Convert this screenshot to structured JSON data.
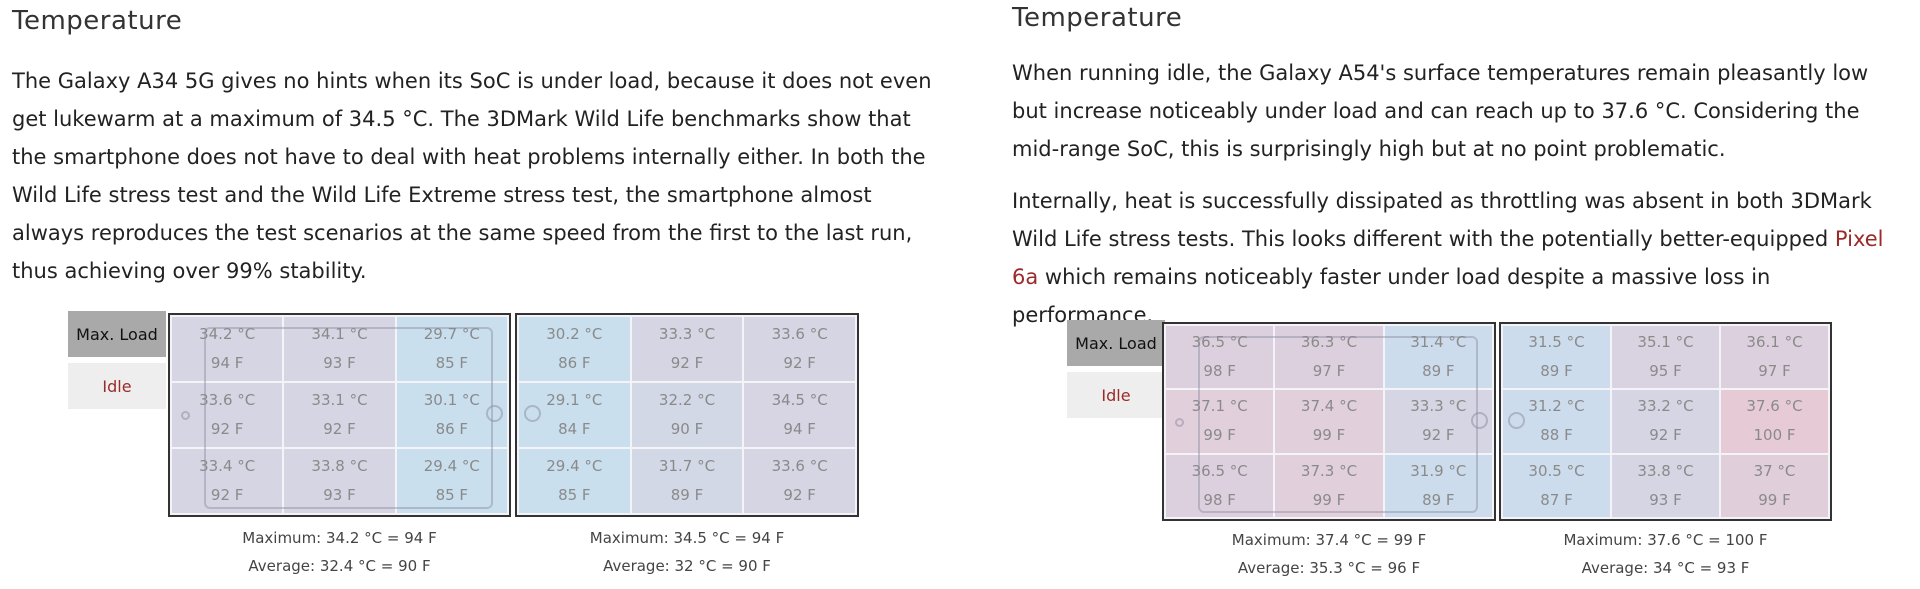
{
  "columns": [
    {
      "title": "Temperature",
      "paragraphs": [
        [
          {
            "text": "The Galaxy A34 5G gives no hints when its SoC is under load, because it does not even get lukewarm at a maximum of 34.5 °C. The 3DMark Wild Life benchmarks show that the smartphone does not have to deal with heat problems internally either. In both the Wild Life stress test and the Wild Life Extreme stress test, the smartphone almost always reproduces the test scenarios at the same speed from the first to the last run, thus achieving over 99% stability."
          }
        ]
      ],
      "tabs": [
        "Max. Load",
        "Idle"
      ],
      "panels": [
        {
          "cells": [
            {
              "c": "34.2 °C",
              "f": "94 F",
              "color": "#d5d5e4"
            },
            {
              "c": "34.1 °C",
              "f": "93 F",
              "color": "#d5d5e4"
            },
            {
              "c": "29.7 °C",
              "f": "85 F",
              "color": "#c9dfee"
            },
            {
              "c": "33.6 °C",
              "f": "92 F",
              "color": "#d5d5e4"
            },
            {
              "c": "33.1 °C",
              "f": "92 F",
              "color": "#d5d5e4"
            },
            {
              "c": "30.1 °C",
              "f": "86 F",
              "color": "#c9dfee"
            },
            {
              "c": "33.4 °C",
              "f": "92 F",
              "color": "#d5d5e4"
            },
            {
              "c": "33.8 °C",
              "f": "93 F",
              "color": "#d5d5e4"
            },
            {
              "c": "29.4 °C",
              "f": "85 F",
              "color": "#c9dfee"
            }
          ],
          "maximum": "Maximum: 34.2 °C = 94 F",
          "average": "Average: 32.4 °C = 90 F"
        },
        {
          "cells": [
            {
              "c": "30.2 °C",
              "f": "86 F",
              "color": "#c9dfee"
            },
            {
              "c": "33.3 °C",
              "f": "92 F",
              "color": "#d5d5e4"
            },
            {
              "c": "33.6 °C",
              "f": "92 F",
              "color": "#d5d5e4"
            },
            {
              "c": "29.1 °C",
              "f": "84 F",
              "color": "#c9dfee"
            },
            {
              "c": "32.2 °C",
              "f": "90 F",
              "color": "#d2d8e6"
            },
            {
              "c": "34.5 °C",
              "f": "94 F",
              "color": "#d7d4e3"
            },
            {
              "c": "29.4 °C",
              "f": "85 F",
              "color": "#c9dfee"
            },
            {
              "c": "31.7 °C",
              "f": "89 F",
              "color": "#d2d8e6"
            },
            {
              "c": "33.6 °C",
              "f": "92 F",
              "color": "#d5d5e4"
            }
          ],
          "maximum": "Maximum: 34.5 °C = 94 F",
          "average": "Average: 32 °C = 90 F"
        }
      ]
    },
    {
      "title": "Temperature",
      "paragraphs": [
        [
          {
            "text": "When running idle, the Galaxy A54's surface temperatures remain pleasantly low but increase noticeably under load and can reach up to 37.6 °C. Considering the mid-range SoC, this is surprisingly high but at no point problematic."
          }
        ],
        [
          {
            "text": "Internally, heat is successfully dissipated as throttling was absent in both 3DMark Wild Life stress tests. This looks different with the potentially better-equipped "
          },
          {
            "link": "Pixel 6a"
          },
          {
            "text": " which remains noticeably faster under load despite a massive loss in performance."
          }
        ]
      ],
      "tabs": [
        "Max. Load",
        "Idle"
      ],
      "panels": [
        {
          "cells": [
            {
              "c": "36.5 °C",
              "f": "98 F",
              "color": "#ddd0de"
            },
            {
              "c": "36.3 °C",
              "f": "97 F",
              "color": "#ddd0de"
            },
            {
              "c": "31.4 °C",
              "f": "89 F",
              "color": "#cddcec"
            },
            {
              "c": "37.1 °C",
              "f": "99 F",
              "color": "#e2cfdc"
            },
            {
              "c": "37.4 °C",
              "f": "99 F",
              "color": "#e2cfdc"
            },
            {
              "c": "33.3 °C",
              "f": "92 F",
              "color": "#d5d5e4"
            },
            {
              "c": "36.5 °C",
              "f": "98 F",
              "color": "#ddd0de"
            },
            {
              "c": "37.3 °C",
              "f": "99 F",
              "color": "#e2cfdc"
            },
            {
              "c": "31.9 °C",
              "f": "89 F",
              "color": "#cddcec"
            }
          ],
          "maximum": "Maximum: 37.4 °C = 99 F",
          "average": "Average: 35.3 °C = 96 F"
        },
        {
          "cells": [
            {
              "c": "31.5 °C",
              "f": "89 F",
              "color": "#cddcec"
            },
            {
              "c": "35.1 °C",
              "f": "95 F",
              "color": "#d9d2e1"
            },
            {
              "c": "36.1 °C",
              "f": "97 F",
              "color": "#ddd0de"
            },
            {
              "c": "31.2 °C",
              "f": "88 F",
              "color": "#cddcec"
            },
            {
              "c": "33.2 °C",
              "f": "92 F",
              "color": "#d5d5e4"
            },
            {
              "c": "37.6 °C",
              "f": "100 F",
              "color": "#e6cbd6"
            },
            {
              "c": "30.5 °C",
              "f": "87 F",
              "color": "#cddcec"
            },
            {
              "c": "33.8 °C",
              "f": "93 F",
              "color": "#d5d5e4"
            },
            {
              "c": "37 °C",
              "f": "99 F",
              "color": "#e0cedb"
            }
          ],
          "maximum": "Maximum: 37.6 °C = 100 F",
          "average": "Average: 34 °C = 93 F"
        }
      ]
    }
  ]
}
